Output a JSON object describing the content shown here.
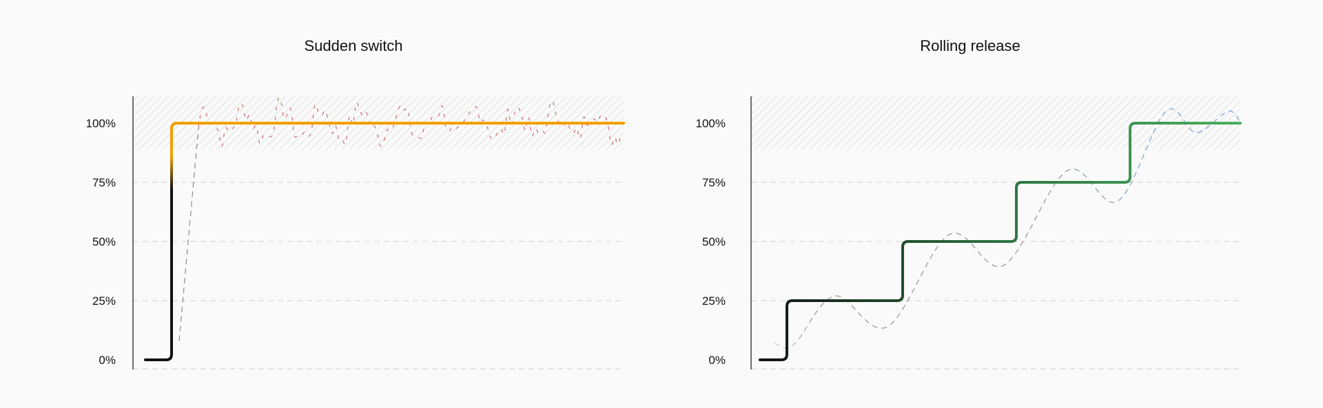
{
  "chart_data": [
    {
      "type": "line",
      "title": "Sudden switch",
      "ytick_labels": [
        "0%",
        "25%",
        "50%",
        "75%",
        "100%"
      ],
      "ylim": [
        0,
        110
      ],
      "grid": "horizontal dashed",
      "target_zone": [
        90,
        110
      ],
      "series": [
        {
          "style": "step",
          "levels": [
            0,
            100
          ],
          "colors": [
            "#111111",
            "#f29f05"
          ]
        },
        {
          "style": "dashed",
          "behaviour": "jumps from 0 to 100 and then fluctuates noisily within the hatched zone",
          "colors": [
            "#888888",
            "#c96a6a"
          ]
        }
      ]
    },
    {
      "type": "line",
      "title": "Rolling release",
      "ytick_labels": [
        "0%",
        "25%",
        "50%",
        "75%",
        "100%"
      ],
      "ylim": [
        0,
        110
      ],
      "grid": "horizontal dashed",
      "target_zone": [
        90,
        110
      ],
      "series": [
        {
          "style": "step",
          "levels": [
            0,
            25,
            50,
            75,
            100
          ],
          "colors": [
            "#111111",
            "#2a6b3c",
            "#4caf62"
          ]
        },
        {
          "style": "dashed",
          "behaviour": "follows each step after a delay, overshooting and undershooting",
          "colors": [
            "#999999",
            "#7fa8dc"
          ]
        }
      ]
    }
  ]
}
